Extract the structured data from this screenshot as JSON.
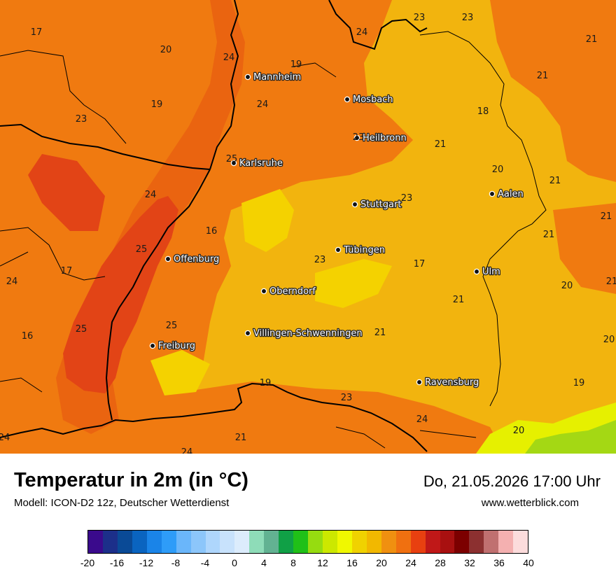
{
  "title": "Temperatur in 2m (in °C)",
  "model_line": "Modell: ICON-D2 12z, Deutscher Wetterdienst",
  "datetime": "Do, 21.05.2026 17:00 Uhr",
  "website": "www.wetterblick.com",
  "legend": {
    "ticks": [
      "-20",
      "-16",
      "-12",
      "-8",
      "-4",
      "0",
      "4",
      "8",
      "12",
      "16",
      "20",
      "24",
      "28",
      "32",
      "36",
      "40"
    ],
    "colors": [
      "#3a0a8c",
      "#1c2f8a",
      "#0a4a96",
      "#0a64c0",
      "#1a84e8",
      "#2e9cf8",
      "#6ab6fa",
      "#8cc6fa",
      "#aed6fc",
      "#c8e2fc",
      "#dcecfc",
      "#8edcb8",
      "#62b292",
      "#10a046",
      "#20c018",
      "#96dc10",
      "#cce800",
      "#f0f800",
      "#f0d200",
      "#f2b800",
      "#f09010",
      "#f07010",
      "#e84010",
      "#c01818",
      "#a81010",
      "#7c0000",
      "#8c3030",
      "#c07070",
      "#f4b0b0",
      "#fcdcdc"
    ]
  },
  "map": {
    "colors": {
      "base": "#f2b40e",
      "orange": "#f07a10",
      "dark_orange": "#ea6410",
      "red": "#e24416",
      "light_yellow": "#f4d200",
      "yellow_green": "#e6f000",
      "green": "#a4d814",
      "outline": "#000000"
    },
    "cities": [
      {
        "name": "Mannheim"
      },
      {
        "name": "Mosbach"
      },
      {
        "name": "Heilbronn"
      },
      {
        "name": "Karlsruhe"
      },
      {
        "name": "Aalen"
      },
      {
        "name": "Stuttgart"
      },
      {
        "name": "Tübingen"
      },
      {
        "name": "Offenburg"
      },
      {
        "name": "Ulm"
      },
      {
        "name": "Oberndorf"
      },
      {
        "name": "Villingen-Schwenningen"
      },
      {
        "name": "Freiburg"
      },
      {
        "name": "Ravensburg"
      }
    ],
    "values": [
      "17",
      "20",
      "24",
      "19",
      "24",
      "23",
      "23",
      "21",
      "21",
      "18",
      "19",
      "24",
      "23",
      "23",
      "25",
      "21",
      "20",
      "21",
      "24",
      "23",
      "16",
      "21",
      "21",
      "25",
      "17",
      "23",
      "17",
      "24",
      "20",
      "21",
      "21",
      "25",
      "16",
      "25",
      "21",
      "20",
      "19",
      "23",
      "19",
      "24",
      "20",
      "24",
      "21",
      "24"
    ]
  }
}
